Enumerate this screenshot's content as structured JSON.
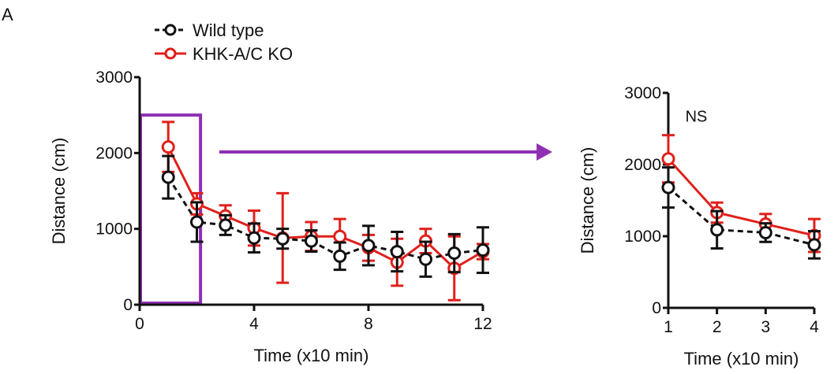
{
  "panel_label": "A",
  "legend": [
    "Wild type",
    "KHK-A/C KO"
  ],
  "colors": {
    "wild_type": "#111111",
    "ko": "#e0201b",
    "highlight": "#8e2fb5"
  },
  "chart_data": [
    {
      "type": "line",
      "xlabel": "Time (x10 min)",
      "ylabel": "Distance (cm)",
      "xlim": [
        0,
        12
      ],
      "ylim": [
        0,
        3000
      ],
      "xticks": [
        0,
        4,
        8,
        12
      ],
      "yticks": [
        0,
        1000,
        2000,
        3000
      ],
      "x": [
        1,
        2,
        3,
        4,
        5,
        6,
        7,
        8,
        9,
        10,
        11,
        12
      ],
      "series": [
        {
          "name": "Wild type",
          "values": [
            1680,
            1090,
            1050,
            880,
            870,
            840,
            640,
            780,
            700,
            600,
            680,
            720
          ],
          "err": [
            280,
            260,
            130,
            190,
            130,
            140,
            180,
            260,
            260,
            230,
            250,
            300
          ]
        },
        {
          "name": "KHK-A/C KO",
          "values": [
            2080,
            1330,
            1170,
            1010,
            880,
            900,
            900,
            750,
            560,
            840,
            480,
            700
          ],
          "err": [
            330,
            140,
            140,
            230,
            590,
            190,
            230,
            170,
            310,
            160,
            420,
            100
          ]
        }
      ],
      "highlight_region": [
        0,
        2.1
      ]
    },
    {
      "type": "line",
      "xlabel": "Time (x10 min)",
      "ylabel": "Distance (cm)",
      "xlim": [
        1,
        4
      ],
      "ylim": [
        0,
        3000
      ],
      "xticks": [
        1,
        2,
        3,
        4
      ],
      "yticks": [
        0,
        1000,
        2000,
        3000
      ],
      "x": [
        1,
        2,
        3,
        4
      ],
      "annotation": "NS",
      "series": [
        {
          "name": "Wild type",
          "values": [
            1680,
            1090,
            1050,
            880
          ],
          "err": [
            280,
            260,
            130,
            190
          ]
        },
        {
          "name": "KHK-A/C KO",
          "values": [
            2080,
            1330,
            1170,
            1010
          ],
          "err": [
            330,
            140,
            140,
            230
          ]
        }
      ]
    }
  ]
}
